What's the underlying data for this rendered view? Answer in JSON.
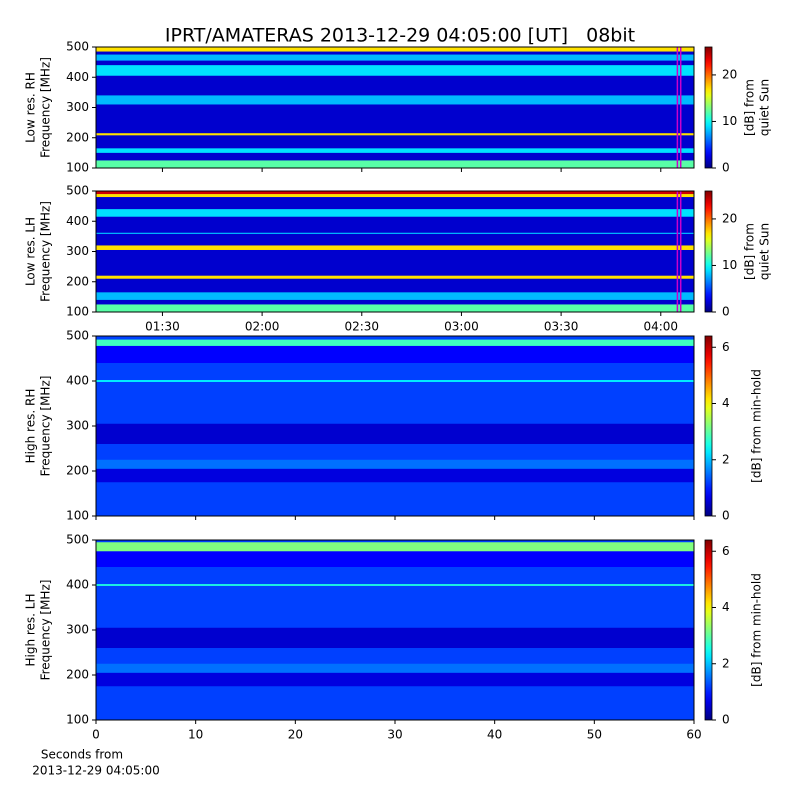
{
  "chart_data": {
    "type": "spectrogram",
    "title": "IPRT/AMATERAS 2013-12-29 04:05:00 [UT]   08bit",
    "xlabel": [
      "Seconds from",
      "2013-12-29 04:05:00"
    ],
    "highlight": {
      "from": "04:05",
      "to": "04:06",
      "color": "#cc00cc"
    },
    "panels": [
      {
        "ylabel": [
          "Low res. RH",
          "Frequency [MHz]"
        ],
        "ylim": [
          100,
          500
        ],
        "yticks": [
          100,
          200,
          300,
          400,
          500
        ],
        "xunit": "time",
        "xlim": [
          "01:10",
          "04:10"
        ],
        "clabel": [
          "[dB] from",
          "quiet Sun"
        ],
        "clim": [
          0,
          26
        ],
        "cticks": [
          0,
          10,
          20
        ],
        "background": 2,
        "bands": [
          {
            "low": 100,
            "high": 125,
            "level": 12
          },
          {
            "low": 150,
            "high": 165,
            "level": 9
          },
          {
            "low": 208,
            "high": 215,
            "level": 17
          },
          {
            "low": 310,
            "high": 340,
            "level": 8
          },
          {
            "low": 405,
            "high": 440,
            "level": 9
          },
          {
            "low": 455,
            "high": 475,
            "level": 8
          },
          {
            "low": 485,
            "high": 500,
            "level": 17
          }
        ]
      },
      {
        "ylabel": [
          "Low res. LH",
          "Frequency [MHz]"
        ],
        "ylim": [
          100,
          500
        ],
        "yticks": [
          100,
          200,
          300,
          400,
          500
        ],
        "xunit": "time",
        "xlim": [
          "01:10",
          "04:10"
        ],
        "xticks": [
          "01:30",
          "02:00",
          "02:30",
          "03:00",
          "03:30",
          "04:00"
        ],
        "clabel": [
          "[dB] from",
          "quiet Sun"
        ],
        "clim": [
          0,
          26
        ],
        "cticks": [
          0,
          10,
          20
        ],
        "background": 2,
        "bands": [
          {
            "low": 100,
            "high": 125,
            "level": 12
          },
          {
            "low": 140,
            "high": 165,
            "level": 8
          },
          {
            "low": 210,
            "high": 220,
            "level": 17
          },
          {
            "low": 305,
            "high": 320,
            "level": 17
          },
          {
            "low": 358,
            "high": 362,
            "level": 8
          },
          {
            "low": 415,
            "high": 440,
            "level": 9
          },
          {
            "low": 480,
            "high": 490,
            "level": 17
          },
          {
            "low": 490,
            "high": 500,
            "level": 24
          }
        ]
      },
      {
        "ylabel": [
          "High res. RH",
          "Frequency [MHz]"
        ],
        "ylim": [
          100,
          500
        ],
        "yticks": [
          100,
          200,
          300,
          400,
          500
        ],
        "xunit": "seconds",
        "xlim": [
          0,
          60
        ],
        "clabel": [
          "[dB] from min-hold"
        ],
        "clim": [
          0,
          6.4
        ],
        "cticks": [
          0,
          2,
          4,
          6
        ],
        "background": 1.2,
        "bands": [
          {
            "low": 175,
            "high": 205,
            "level": 0.6
          },
          {
            "low": 260,
            "high": 305,
            "level": 0.5
          },
          {
            "low": 205,
            "high": 225,
            "level": 1.5
          },
          {
            "low": 440,
            "high": 478,
            "level": 0.8
          },
          {
            "low": 478,
            "high": 492,
            "level": 2.8
          },
          {
            "low": 398,
            "high": 402,
            "level": 2.4
          }
        ]
      },
      {
        "ylabel": [
          "High res. LH",
          "Frequency [MHz]"
        ],
        "ylim": [
          100,
          500
        ],
        "yticks": [
          100,
          200,
          300,
          400,
          500
        ],
        "xunit": "seconds",
        "xlim": [
          0,
          60
        ],
        "xticks": [
          0,
          10,
          20,
          30,
          40,
          50,
          60
        ],
        "clabel": [
          "[dB] from min-hold"
        ],
        "clim": [
          0,
          6.4
        ],
        "cticks": [
          0,
          2,
          4,
          6
        ],
        "background": 1.2,
        "bands": [
          {
            "low": 175,
            "high": 205,
            "level": 0.6
          },
          {
            "low": 260,
            "high": 305,
            "level": 0.5
          },
          {
            "low": 205,
            "high": 225,
            "level": 1.5
          },
          {
            "low": 440,
            "high": 475,
            "level": 0.8
          },
          {
            "low": 475,
            "high": 495,
            "level": 3.2
          },
          {
            "low": 398,
            "high": 402,
            "level": 2.6
          }
        ]
      }
    ]
  }
}
